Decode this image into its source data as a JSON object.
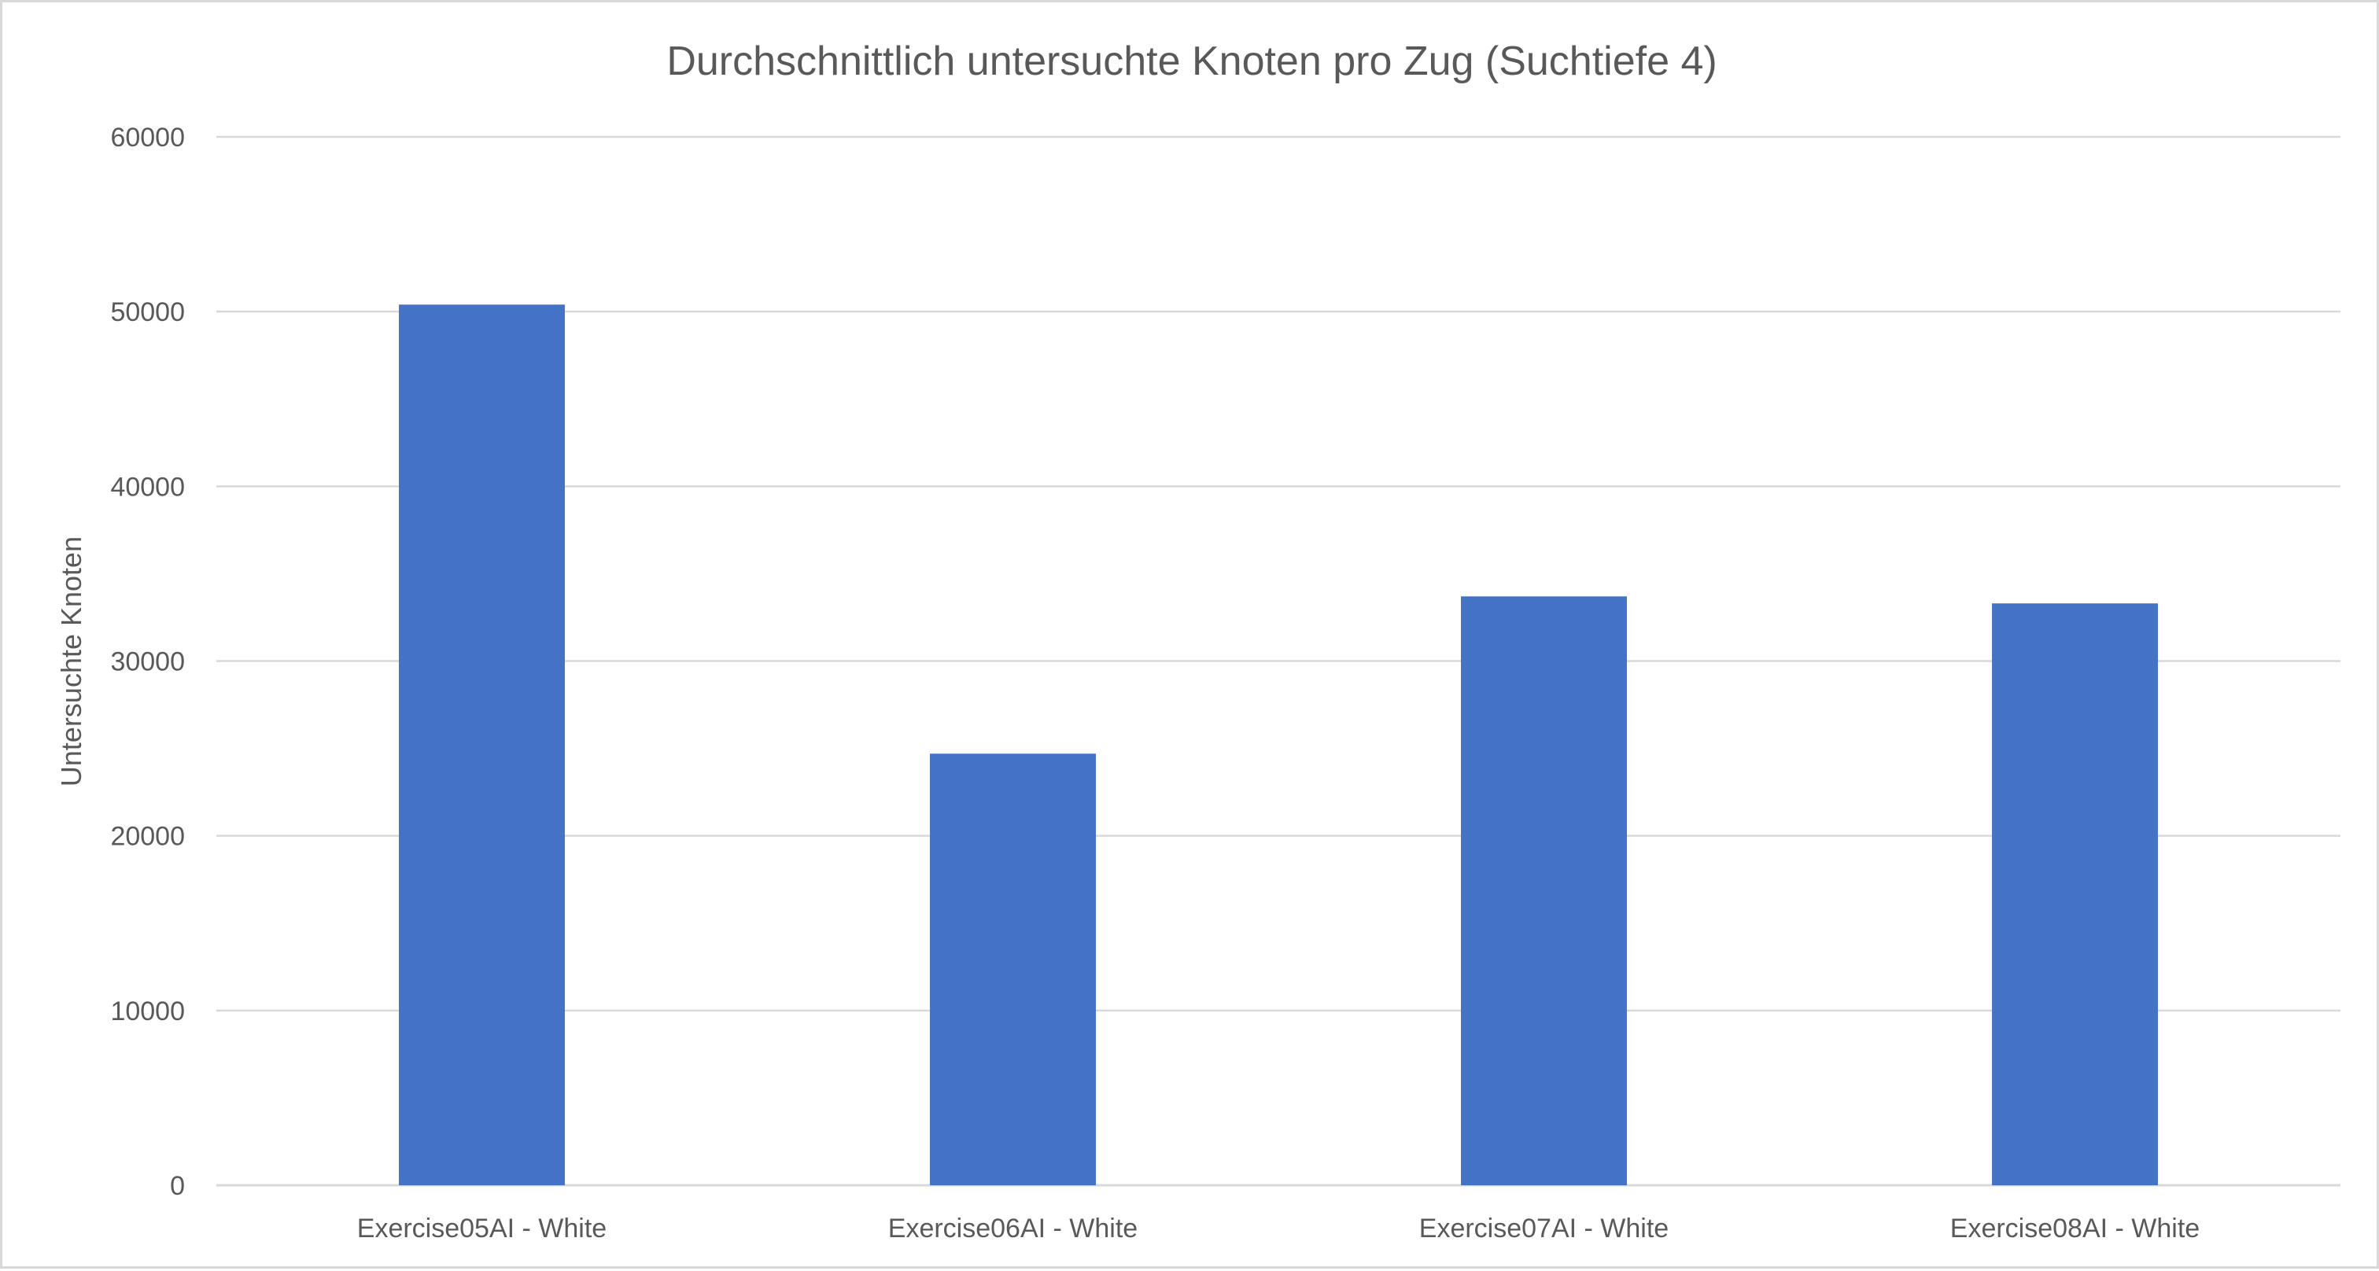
{
  "chart_data": {
    "type": "bar",
    "title": "Durchschnittlich untersuchte Knoten pro Zug (Suchtiefe 4)",
    "xlabel": "",
    "ylabel": "Untersuchte Knoten",
    "categories": [
      "Exercise05AI - White",
      "Exercise06AI - White",
      "Exercise07AI - White",
      "Exercise08AI - White"
    ],
    "series": [
      {
        "values": [
          50400,
          24700,
          33700,
          33300
        ]
      }
    ],
    "ylim": [
      0,
      60000
    ],
    "yticks": [
      "0",
      "10000",
      "20000",
      "30000",
      "40000",
      "50000",
      "60000"
    ],
    "grid": true,
    "legend": "none",
    "colors": {
      "bar": "#4472c4",
      "grid": "#d9d9d9",
      "text": "#595959"
    }
  }
}
